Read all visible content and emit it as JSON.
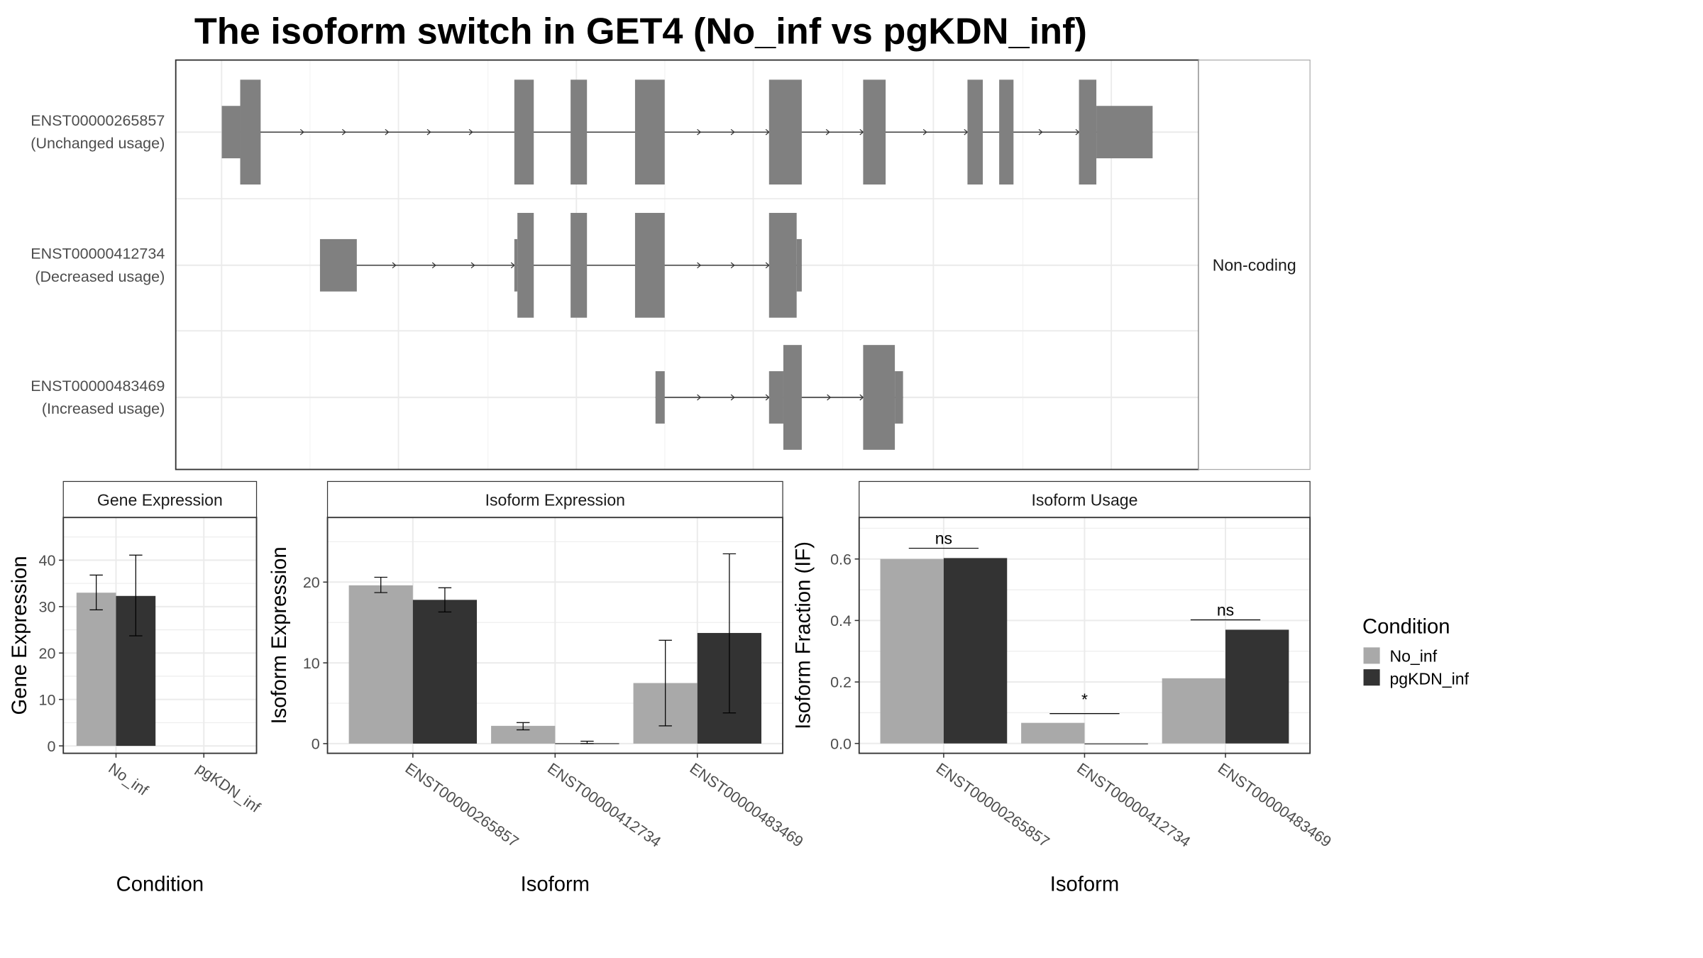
{
  "chart_data": {
    "title": "The isoform switch in GET4 (No_inf vs pgKDN_inf)",
    "colors": {
      "No_inf": "#a9a9a9",
      "pgKDN_inf": "#333333",
      "exon": "#808080"
    },
    "legend": {
      "title": "Condition",
      "position": "right",
      "entries": [
        "No_inf",
        "pgKDN_inf"
      ]
    },
    "structure": {
      "type": "transcript-structure",
      "strip_label": "Non-coding",
      "x_units": "relative genomic position (0-100)",
      "transcripts": [
        {
          "id": "ENST00000265857",
          "usage": "(Unchanged usage)",
          "exons": [
            [
              4.5,
              6.3,
              "utr"
            ],
            [
              6.3,
              8.3,
              "coding"
            ],
            [
              33.1,
              35.0,
              "coding"
            ],
            [
              38.6,
              40.2,
              "coding"
            ],
            [
              44.9,
              47.8,
              "coding"
            ],
            [
              58.0,
              61.2,
              "coding"
            ],
            [
              67.2,
              69.4,
              "coding"
            ],
            [
              77.4,
              78.9,
              "coding"
            ],
            [
              80.5,
              81.9,
              "coding"
            ],
            [
              88.3,
              90.0,
              "coding"
            ],
            [
              90.0,
              95.5,
              "utr"
            ]
          ],
          "arrows": [
            8.3,
            12.5,
            16.6,
            20.8,
            24.9,
            29.0,
            47.8,
            51.3,
            54.6,
            58.0,
            63.9,
            67.2,
            73.4,
            77.4,
            84.7,
            88.3
          ]
        },
        {
          "id": "ENST00000412734",
          "usage": "(Decreased usage)",
          "exons": [
            [
              14.1,
              17.7,
              "utr"
            ],
            [
              33.1,
              33.4,
              "utr"
            ],
            [
              33.4,
              35.0,
              "coding"
            ],
            [
              38.6,
              40.2,
              "coding"
            ],
            [
              44.9,
              47.8,
              "coding"
            ],
            [
              58.0,
              60.7,
              "coding"
            ],
            [
              60.7,
              61.2,
              "utr"
            ]
          ],
          "arrows": [
            17.7,
            21.5,
            25.4,
            29.2,
            33.1,
            51.3,
            54.6,
            58.0
          ]
        },
        {
          "id": "ENST00000483469",
          "usage": "(Increased usage)",
          "exons": [
            [
              46.9,
              47.8,
              "utr"
            ],
            [
              58.0,
              59.4,
              "utr"
            ],
            [
              59.4,
              61.2,
              "coding"
            ],
            [
              67.2,
              70.3,
              "coding"
            ],
            [
              70.3,
              71.1,
              "utr"
            ]
          ],
          "arrows": [
            51.3,
            54.6,
            58.0,
            64.0,
            67.2
          ]
        }
      ]
    },
    "panels": [
      {
        "type": "bar",
        "strip": "Gene Expression",
        "xlabel": "Condition",
        "ylabel": "Gene Expression",
        "ylim": [
          -1.6,
          49.2
        ],
        "yticks": [
          0,
          10,
          20,
          30,
          40
        ],
        "categories": [
          "No_inf",
          "pgKDN_inf"
        ],
        "series": [
          {
            "name": "No_inf",
            "values": [
              33.0
            ],
            "err": [
              [
                29.3,
                36.8
              ]
            ]
          },
          {
            "name": "pgKDN_inf",
            "values": [
              32.3
            ],
            "err": [
              [
                23.7,
                41.1
              ]
            ]
          }
        ]
      },
      {
        "type": "bar",
        "strip": "Isoform Expression",
        "xlabel": "Isoform",
        "ylabel": "Isoform Expression",
        "ylim": [
          -1.2,
          28.0
        ],
        "yticks": [
          0,
          10,
          20
        ],
        "categories": [
          "ENST00000265857",
          "ENST00000412734",
          "ENST00000483469"
        ],
        "series": [
          {
            "name": "No_inf",
            "values": [
              19.6,
              2.2,
              7.5
            ],
            "err": [
              [
                18.7,
                20.6
              ],
              [
                1.7,
                2.6
              ],
              [
                2.2,
                12.8
              ]
            ]
          },
          {
            "name": "pgKDN_inf",
            "values": [
              17.8,
              0.05,
              13.7
            ],
            "err": [
              [
                16.3,
                19.3
              ],
              [
                0.0,
                0.3
              ],
              [
                3.8,
                23.5
              ]
            ]
          }
        ]
      },
      {
        "type": "bar",
        "strip": "Isoform Usage",
        "xlabel": "Isoform",
        "ylabel": "Isoform Fraction (IF)",
        "ylim": [
          -0.032,
          0.735
        ],
        "yticks": [
          0.0,
          0.2,
          0.4,
          0.6
        ],
        "ytick_labels": [
          "0.0",
          "0.2",
          "0.4",
          "0.6"
        ],
        "categories": [
          "ENST00000265857",
          "ENST00000412734",
          "ENST00000483469"
        ],
        "series": [
          {
            "name": "No_inf",
            "values": [
              0.6,
              0.067,
              0.212
            ]
          },
          {
            "name": "pgKDN_inf",
            "values": [
              0.603,
              0.0,
              0.37
            ]
          }
        ],
        "significance": [
          {
            "label": "ns",
            "y": 0.635
          },
          {
            "label": "*",
            "y": 0.097
          },
          {
            "label": "ns",
            "y": 0.402
          }
        ]
      }
    ]
  }
}
